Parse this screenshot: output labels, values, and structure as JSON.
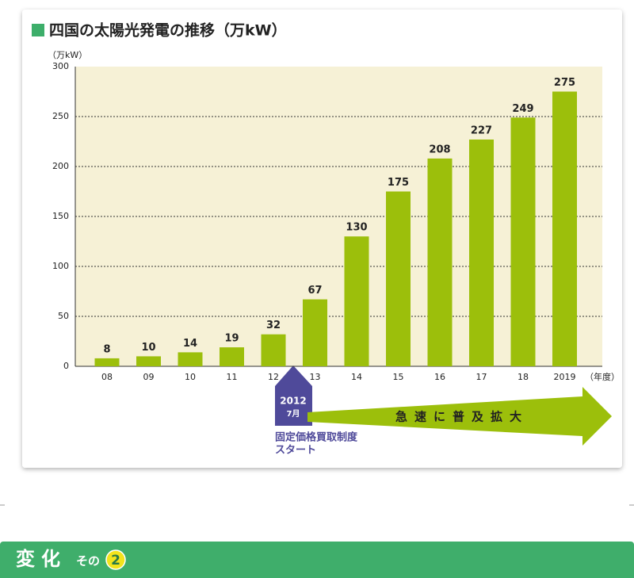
{
  "chart_data": {
    "type": "bar",
    "title": "四国の太陽光発電の推移（万kW）",
    "y_unit_label": "（万kW）",
    "x_unit_label": "（年度）",
    "categories": [
      "08",
      "09",
      "10",
      "11",
      "12",
      "13",
      "14",
      "15",
      "16",
      "17",
      "18",
      "2019"
    ],
    "values": [
      8,
      10,
      14,
      19,
      32,
      67,
      130,
      175,
      208,
      227,
      249,
      275
    ],
    "color": "#9cbf0b",
    "ylim": [
      0,
      300
    ],
    "yticks": [
      0,
      50,
      100,
      150,
      200,
      250,
      300
    ],
    "grid": true,
    "annotations": {
      "start_year": "2012",
      "start_month": "7月",
      "start_label": [
        "固定価格買取制度",
        "スタート"
      ],
      "trend": "急速に普及拡大"
    }
  },
  "banner": {
    "title": "変化",
    "suffix": "その",
    "number": "2"
  }
}
